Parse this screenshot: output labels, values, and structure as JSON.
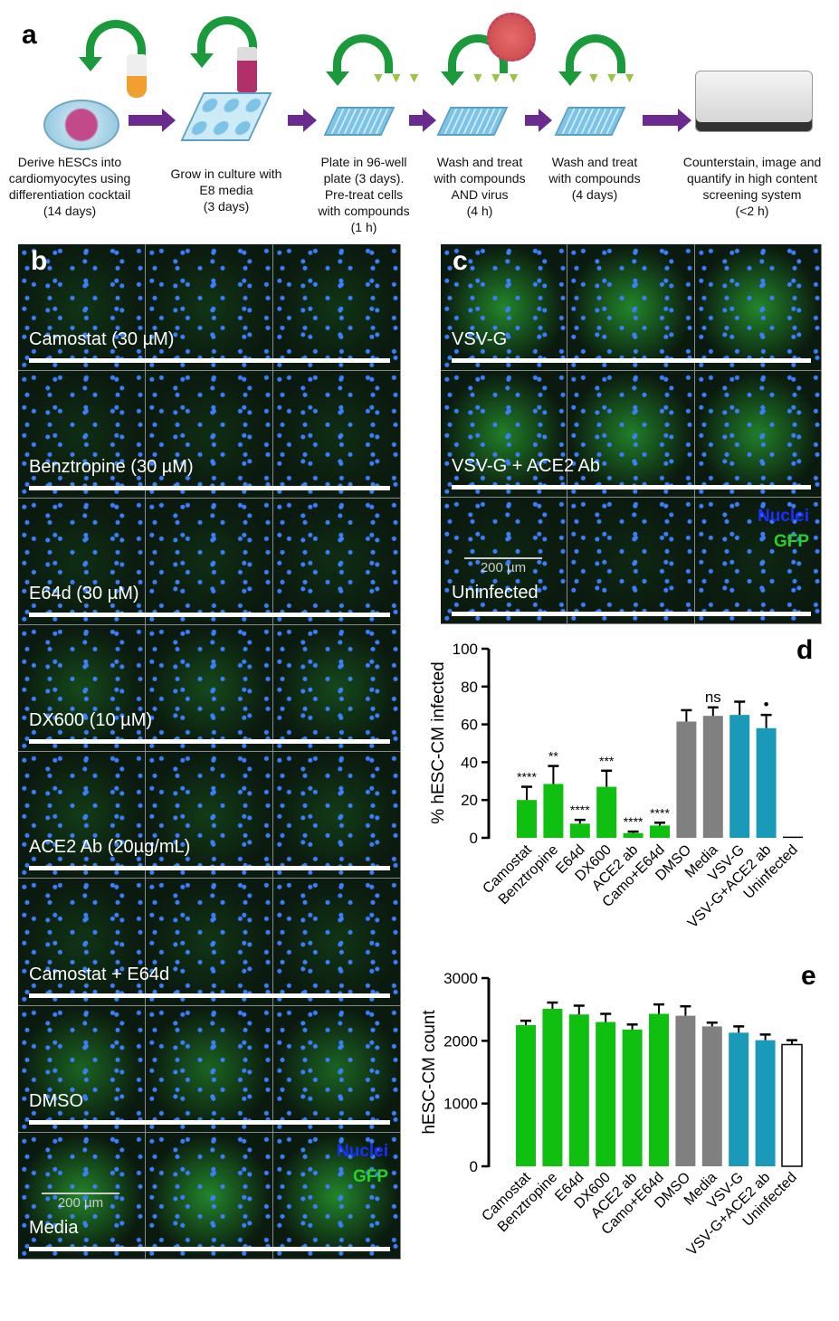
{
  "panel_a": {
    "label": "a",
    "steps": [
      [
        "Derive hESCs into",
        "cardiomyocytes using",
        "differentiation cocktail",
        "(14 days)"
      ],
      [
        "Grow in culture with",
        "E8 media",
        "(3 days)"
      ],
      [
        "Plate in 96-well",
        "plate (3 days).",
        "Pre-treat cells",
        "with compounds",
        "(1 h)"
      ],
      [
        "Wash and treat",
        "with compounds",
        "AND virus",
        "(4 h)"
      ],
      [
        "Wash and treat",
        "with compounds",
        "(4 days)"
      ],
      [
        "Counterstain, image and",
        "quantify in high content",
        "screening system",
        "(<2 h)"
      ]
    ]
  },
  "panel_b": {
    "label": "b",
    "rows": [
      "Camostat (30 µM)",
      "Benztropine  (30 µM)",
      "E64d (30 µM)",
      "DX600 (10 µM)",
      "ACE2 Ab (20µg/mL)",
      "Camostat + E64d",
      "DMSO",
      "Media"
    ],
    "legend_nuclei": "Nuclei",
    "legend_gfp": "GFP",
    "scale": "200 µm"
  },
  "panel_c": {
    "label": "c",
    "rows": [
      "VSV-G",
      "VSV-G + ACE2 Ab",
      "Uninfected"
    ],
    "legend_nuclei": "Nuclei",
    "legend_gfp": "GFP",
    "scale": "200 µm"
  },
  "colors": {
    "green": "#10c010",
    "gray": "#808080",
    "teal": "#1a9ab8",
    "white": "#ffffff",
    "nuclei": "#1a2fff",
    "gfp": "#28d028"
  },
  "chart_data": [
    {
      "panel": "d",
      "type": "bar",
      "ylabel": "% hESC-CM infected",
      "ylim": [
        0,
        100
      ],
      "yticks": [
        0,
        20,
        40,
        60,
        80,
        100
      ],
      "categories": [
        "Camostat",
        "Benztropine",
        "E64d",
        "DX600",
        "ACE2 ab",
        "Camo+E64d",
        "DMSO",
        "Media",
        "VSV-G",
        "VSV-G+ACE2 ab",
        "Uninfected"
      ],
      "values": [
        20,
        28.5,
        7.5,
        27,
        2.5,
        6.5,
        61.5,
        64.5,
        65,
        58,
        0.3
      ],
      "error_upper": [
        27,
        38,
        9.5,
        35.5,
        3.3,
        8,
        67.5,
        69,
        72,
        65,
        0.3
      ],
      "bar_colors": [
        "green",
        "green",
        "green",
        "green",
        "green",
        "green",
        "gray",
        "gray",
        "teal",
        "teal",
        "white"
      ],
      "annotations": [
        "****",
        "**",
        "****",
        "***",
        "****",
        "****",
        "",
        "ns",
        "",
        "•",
        ""
      ]
    },
    {
      "panel": "e",
      "type": "bar",
      "ylabel": "hESC-CM count",
      "ylim": [
        0,
        3000
      ],
      "yticks": [
        0,
        1000,
        2000,
        3000
      ],
      "categories": [
        "Camostat",
        "Benztropine",
        "E64d",
        "DX600",
        "ACE2 ab",
        "Camo+E64d",
        "DMSO",
        "Media",
        "VSV-G",
        "VSV-G+ACE2 ab",
        "Uninfected"
      ],
      "values": [
        2250,
        2510,
        2420,
        2300,
        2180,
        2430,
        2400,
        2230,
        2130,
        2010,
        1940
      ],
      "error_upper": [
        2320,
        2610,
        2560,
        2430,
        2260,
        2580,
        2550,
        2290,
        2230,
        2100,
        2010
      ],
      "bar_colors": [
        "green",
        "green",
        "green",
        "green",
        "green",
        "green",
        "gray",
        "gray",
        "teal",
        "teal",
        "white"
      ]
    }
  ]
}
